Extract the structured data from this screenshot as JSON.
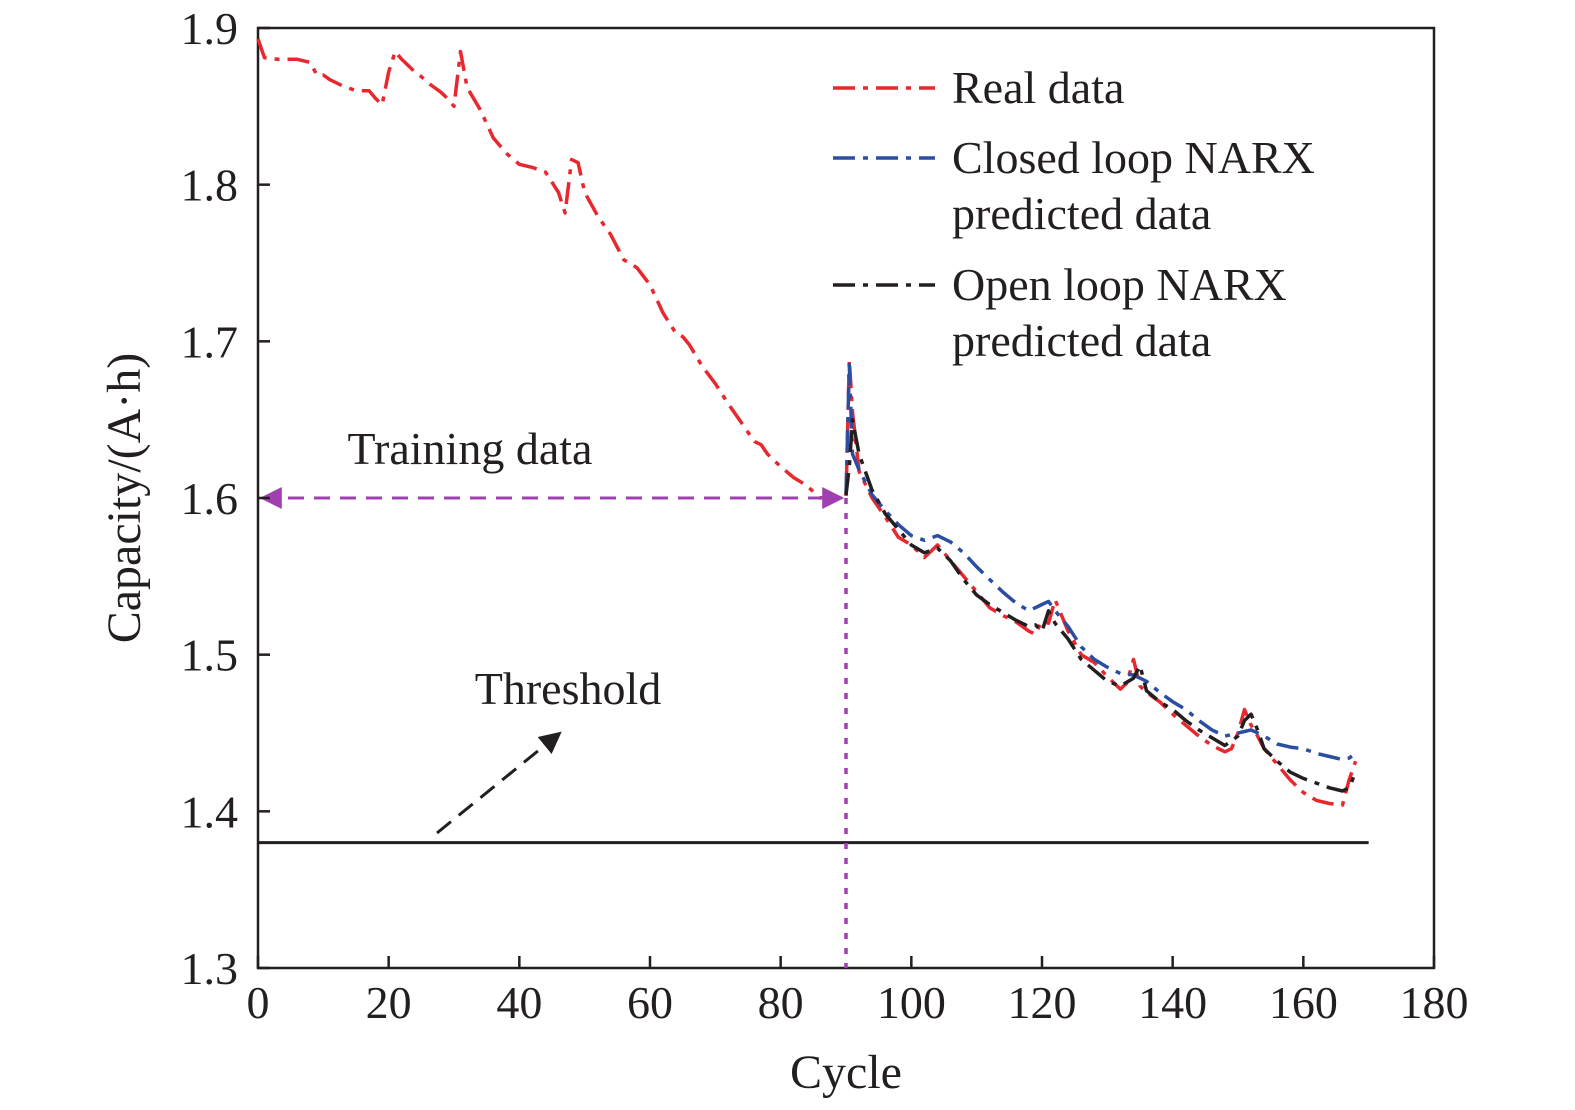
{
  "chart_data": {
    "type": "line",
    "xlabel": "Cycle",
    "ylabel": "Capacity/(A·h)",
    "xlim": [
      0,
      180
    ],
    "ylim": [
      1.3,
      1.9
    ],
    "xticks": [
      0,
      20,
      40,
      60,
      80,
      100,
      120,
      140,
      160,
      180
    ],
    "xtick_labels": [
      "0",
      "20",
      "40",
      "60",
      "80",
      "100",
      "120",
      "140",
      "160",
      "180"
    ],
    "yticks": [
      1.3,
      1.4,
      1.5,
      1.6,
      1.7,
      1.8,
      1.9
    ],
    "ytick_labels": [
      "1.3",
      "1.4",
      "1.5",
      "1.6",
      "1.7",
      "1.8",
      "1.9"
    ],
    "grid": false,
    "legend_position": "top-right",
    "series": [
      {
        "name": "Real data",
        "color": "#e8272e",
        "style": "dash-dot",
        "x": [
          0,
          1,
          3,
          6,
          8,
          9,
          10,
          11,
          13,
          15,
          17,
          18,
          19,
          20,
          21,
          22,
          24,
          25,
          26,
          27,
          28,
          29,
          30,
          31,
          32,
          34,
          36,
          38,
          40,
          42,
          44,
          46,
          47,
          48,
          49,
          50,
          52,
          54,
          56,
          58,
          60,
          62,
          64,
          65,
          66,
          68,
          70,
          72,
          74,
          76,
          77,
          78,
          80,
          82,
          84,
          86,
          88,
          89,
          90,
          90.5,
          91,
          92,
          94,
          96,
          98,
          100,
          102,
          104,
          106,
          108,
          110,
          112,
          114,
          116,
          118,
          119,
          120,
          121,
          122,
          124,
          126,
          128,
          130,
          132,
          133,
          134,
          135,
          136,
          138,
          140,
          142,
          144,
          146,
          148,
          149,
          150,
          151,
          152,
          153,
          154,
          156,
          158,
          160,
          162,
          164,
          166,
          167,
          168
        ],
        "y": [
          1.893,
          1.881,
          1.88,
          1.88,
          1.878,
          1.87,
          1.87,
          1.867,
          1.863,
          1.86,
          1.86,
          1.855,
          1.851,
          1.872,
          1.885,
          1.88,
          1.872,
          1.869,
          1.865,
          1.862,
          1.859,
          1.855,
          1.85,
          1.885,
          1.862,
          1.848,
          1.83,
          1.82,
          1.813,
          1.811,
          1.808,
          1.795,
          1.782,
          1.816,
          1.814,
          1.795,
          1.78,
          1.768,
          1.752,
          1.747,
          1.736,
          1.718,
          1.705,
          1.703,
          1.698,
          1.684,
          1.673,
          1.66,
          1.648,
          1.636,
          1.634,
          1.628,
          1.62,
          1.613,
          1.608,
          1.6,
          1.601,
          1.6,
          1.6,
          1.688,
          1.655,
          1.617,
          1.6,
          1.588,
          1.575,
          1.57,
          1.562,
          1.57,
          1.56,
          1.55,
          1.54,
          1.53,
          1.525,
          1.521,
          1.515,
          1.513,
          1.522,
          1.52,
          1.535,
          1.515,
          1.5,
          1.495,
          1.486,
          1.478,
          1.482,
          1.497,
          1.48,
          1.476,
          1.47,
          1.462,
          1.455,
          1.448,
          1.442,
          1.438,
          1.44,
          1.45,
          1.465,
          1.455,
          1.448,
          1.44,
          1.43,
          1.42,
          1.412,
          1.407,
          1.405,
          1.404,
          1.42,
          1.432
        ]
      },
      {
        "name": "Closed loop NARX predicted data",
        "color": "#2b4ea2",
        "style": "dash-dot",
        "x": [
          90,
          90.5,
          91,
          92,
          94,
          96,
          98,
          100,
          102,
          104,
          106,
          108,
          110,
          112,
          114,
          116,
          118,
          120,
          121,
          122,
          124,
          126,
          128,
          130,
          132,
          134,
          136,
          138,
          140,
          142,
          144,
          146,
          148,
          150,
          152,
          154,
          156,
          158,
          160,
          162,
          164,
          166,
          167,
          168
        ],
        "y": [
          1.602,
          1.685,
          1.628,
          1.618,
          1.602,
          1.592,
          1.583,
          1.576,
          1.573,
          1.576,
          1.572,
          1.565,
          1.556,
          1.548,
          1.54,
          1.533,
          1.528,
          1.532,
          1.534,
          1.528,
          1.518,
          1.505,
          1.497,
          1.492,
          1.488,
          1.487,
          1.483,
          1.476,
          1.47,
          1.465,
          1.458,
          1.452,
          1.448,
          1.45,
          1.452,
          1.448,
          1.443,
          1.441,
          1.44,
          1.437,
          1.435,
          1.433,
          1.434,
          1.437
        ]
      },
      {
        "name": "Open loop NARX predicted data",
        "color": "#231f20",
        "style": "dash-dot",
        "x": [
          90,
          90.5,
          91,
          92,
          94,
          96,
          98,
          100,
          102,
          104,
          106,
          108,
          110,
          112,
          114,
          116,
          118,
          119,
          120,
          121,
          122,
          124,
          126,
          128,
          130,
          132,
          134,
          135,
          136,
          138,
          140,
          142,
          144,
          146,
          148,
          150,
          151,
          152,
          153,
          154,
          156,
          158,
          160,
          162,
          164,
          166,
          167,
          168
        ],
        "y": [
          1.602,
          1.62,
          1.65,
          1.628,
          1.605,
          1.59,
          1.58,
          1.57,
          1.565,
          1.568,
          1.56,
          1.548,
          1.538,
          1.532,
          1.527,
          1.522,
          1.518,
          1.519,
          1.515,
          1.528,
          1.52,
          1.51,
          1.497,
          1.49,
          1.483,
          1.48,
          1.485,
          1.493,
          1.477,
          1.47,
          1.465,
          1.458,
          1.452,
          1.447,
          1.442,
          1.448,
          1.458,
          1.462,
          1.452,
          1.44,
          1.432,
          1.425,
          1.421,
          1.418,
          1.415,
          1.413,
          1.415,
          1.425
        ]
      }
    ],
    "threshold": {
      "label": "Threshold",
      "value": 1.38,
      "x_start": 0,
      "x_end": 170,
      "color": "#231f20"
    },
    "training_annotation": {
      "label": "Training data",
      "x_start": 0,
      "x_end": 90,
      "y": 1.6,
      "color": "#a040b0"
    },
    "split_line": {
      "x": 90,
      "color": "#a040b0"
    }
  }
}
